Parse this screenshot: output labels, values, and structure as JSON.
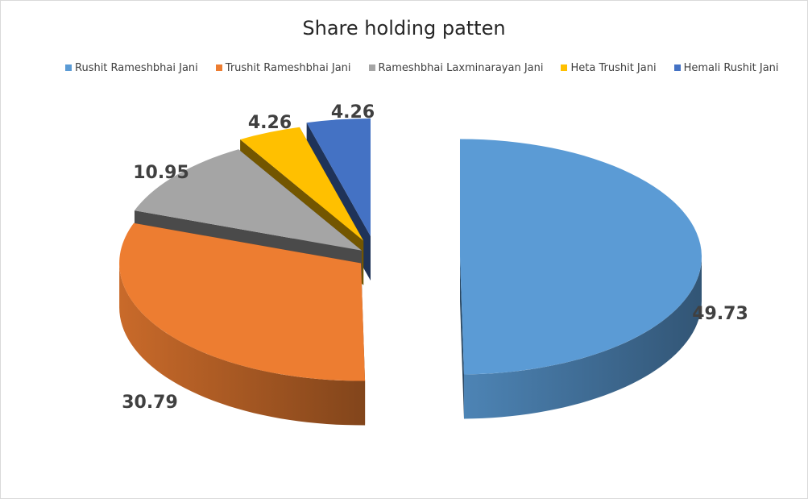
{
  "chart_data": {
    "type": "pie",
    "title": "Share holding patten",
    "legend_position": "top",
    "categories": [
      "Rushit Rameshbhai Jani",
      "Trushit Rameshbhai Jani",
      "Rameshbhai Laxminarayan  Jani",
      "Heta Trushit Jani",
      "Hemali Rushit Jani"
    ],
    "values": [
      49.73,
      30.79,
      10.95,
      4.26,
      4.26
    ],
    "data_labels": [
      "49.73",
      "30.79",
      "10.95",
      "4.26",
      "4.26"
    ],
    "colors": [
      "#5b9bd5",
      "#ed7d31",
      "#a5a5a5",
      "#ffc000",
      "#4472c4"
    ],
    "exploded": true,
    "style_3d": true
  }
}
